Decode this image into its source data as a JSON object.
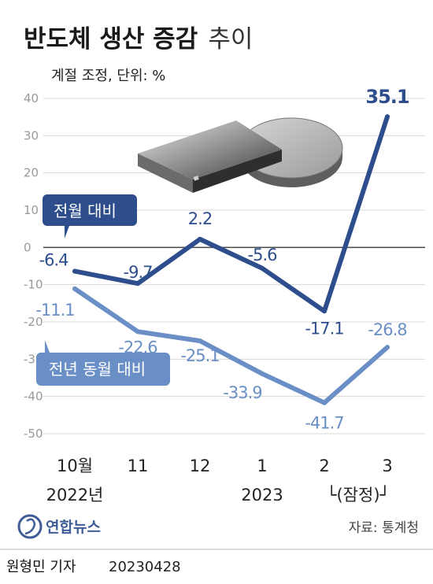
{
  "title": {
    "bold": "반도체 생산 증감",
    "light": "추이"
  },
  "subtitle": "계절 조정, 단위: %",
  "source": "자료: 통계청",
  "logo_text": "연합뉴스",
  "footer": {
    "reporter": "원형민 기자",
    "date": "20230428"
  },
  "colors": {
    "dark": "#2d4d8c",
    "light": "#6a8fc6",
    "grid": "#d8d8d8",
    "zero": "#444444"
  },
  "chart_data": {
    "type": "line",
    "categories": [
      "10월",
      "11",
      "12",
      "1",
      "2",
      "3"
    ],
    "year_labels": [
      {
        "text": "2022년",
        "category_index": 0
      },
      {
        "text": "2023",
        "category_index": 3
      }
    ],
    "provisional_note": "└(잠정)┘",
    "y_ticks": [
      "40",
      "30",
      "20",
      "10",
      "0",
      "-10",
      "-20",
      "-30",
      "-40",
      "-50"
    ],
    "ylim": [
      -50,
      40
    ],
    "series": [
      {
        "name": "전월 대비",
        "values": [
          -6.4,
          -9.7,
          2.2,
          -5.6,
          -17.1,
          35.1
        ],
        "labels": [
          "-6.4",
          "-9.7",
          "2.2",
          "-5.6",
          "-17.1",
          "35.1"
        ]
      },
      {
        "name": "전년 동월 대비",
        "values": [
          -11.1,
          -22.6,
          -25.1,
          -33.9,
          -41.7,
          -26.8
        ],
        "labels": [
          "-11.1",
          "-22.6",
          "-25.1",
          "-33.9",
          "-41.7",
          "-26.8"
        ]
      }
    ]
  }
}
